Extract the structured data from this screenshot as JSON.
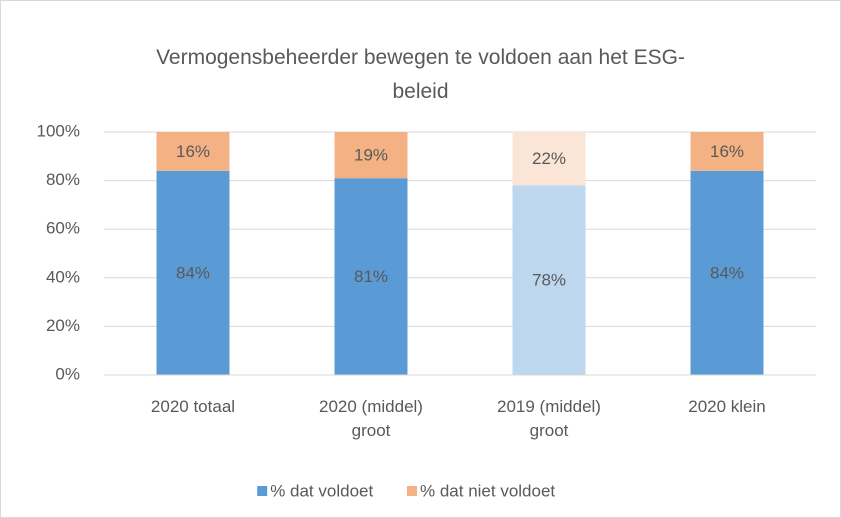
{
  "chart_data": {
    "type": "stacked_bar",
    "title": "Vermogensbeheerder bewegen te voldoen aan het ESG-\nbeleid",
    "categories": [
      "2020 totaal",
      "2020 (middel)\ngroot",
      "2019 (middel)\ngroot",
      "2020 klein"
    ],
    "series": [
      {
        "name": "% dat voldoet",
        "color": "#5b9bd5",
        "point_colors": [
          "#5b9bd5",
          "#5b9bd5",
          "#bdd7ee",
          "#5b9bd5"
        ],
        "values": [
          84,
          81,
          78,
          84
        ],
        "value_labels": [
          "84%",
          "81%",
          "78%",
          "84%"
        ]
      },
      {
        "name": "% dat niet voldoet",
        "color": "#f4b183",
        "point_colors": [
          "#f4b183",
          "#f4b183",
          "#fbe5d6",
          "#f4b183"
        ],
        "values": [
          16,
          19,
          22,
          16
        ],
        "value_labels": [
          "16%",
          "19%",
          "22%",
          "16%"
        ]
      }
    ],
    "ylim": [
      0,
      100
    ],
    "yticks": [
      {
        "value": 0,
        "label": "0%"
      },
      {
        "value": 20,
        "label": "20%"
      },
      {
        "value": 40,
        "label": "40%"
      },
      {
        "value": 60,
        "label": "60%"
      },
      {
        "value": 80,
        "label": "80%"
      },
      {
        "value": 100,
        "label": "100%"
      }
    ],
    "grid": true,
    "legend": "bottom"
  }
}
